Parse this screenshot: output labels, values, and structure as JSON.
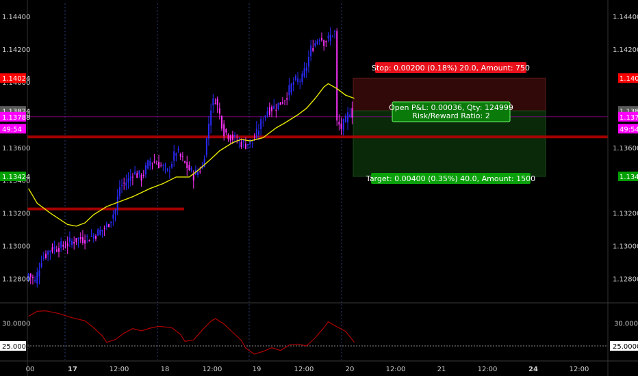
{
  "chart_data": [
    {
      "type": "candlestick",
      "ylim": [
        1.1266,
        1.1448
      ],
      "y_ticks_left": [
        "1.14400",
        "1.14200",
        "1.14000",
        "1.13800",
        "1.13600",
        "1.13400",
        "1.13200",
        "1.13000",
        "1.12800"
      ],
      "y_ticks_left_values": [
        1.144,
        1.142,
        1.14,
        1.138,
        1.136,
        1.134,
        1.132,
        1.13,
        1.128
      ],
      "y_ticks_right": [
        "1.14400",
        "1.14200",
        "1.13600",
        "1.13200",
        "1.13000",
        "1.12800"
      ],
      "y_ticks_right_values": [
        1.144,
        1.142,
        1.136,
        1.132,
        1.13,
        1.128
      ],
      "x_ticks": [
        "00",
        "17",
        "12:00",
        "18",
        "12:00",
        "19",
        "12:00",
        "20",
        "12:00",
        "21",
        "12:00",
        "24",
        "12:00"
      ],
      "x_tick_bold": [
        false,
        true,
        false,
        false,
        false,
        false,
        false,
        false,
        false,
        false,
        false,
        true,
        false
      ],
      "grid": false,
      "price_badges": [
        {
          "label": "1.14024",
          "value": 1.14024,
          "color": "#ff0000"
        },
        {
          "label": "1.13824",
          "value": 1.13824,
          "color": "#5a5a5a"
        },
        {
          "label": "1.13788",
          "value": 1.13788,
          "color": "#ff00ff"
        },
        {
          "label": "49:54",
          "value": 1.13715,
          "color": "#ff00ff"
        },
        {
          "label": "1.13424",
          "value": 1.13424,
          "color": "#00a000"
        }
      ],
      "moving_average": {
        "color": "#e8e800",
        "points": [
          [
            0,
            1.1335
          ],
          [
            4,
            1.1326
          ],
          [
            10,
            1.132
          ],
          [
            18,
            1.1313
          ],
          [
            22,
            1.1312
          ],
          [
            26,
            1.1314
          ],
          [
            30,
            1.1319
          ],
          [
            36,
            1.1324
          ],
          [
            42,
            1.1327
          ],
          [
            48,
            1.133
          ],
          [
            56,
            1.1335
          ],
          [
            62,
            1.1338
          ],
          [
            68,
            1.1342
          ],
          [
            74,
            1.1342
          ],
          [
            78,
            1.1346
          ],
          [
            84,
            1.1353
          ],
          [
            88,
            1.1358
          ],
          [
            94,
            1.1363
          ],
          [
            98,
            1.1365
          ],
          [
            102,
            1.1364
          ],
          [
            108,
            1.1366
          ],
          [
            114,
            1.1372
          ],
          [
            118,
            1.1375
          ],
          [
            124,
            1.138
          ],
          [
            128,
            1.1384
          ],
          [
            132,
            1.139
          ],
          [
            136,
            1.1397
          ],
          [
            138,
            1.1399
          ],
          [
            142,
            1.1396
          ],
          [
            146,
            1.1392
          ],
          [
            150,
            1.139
          ]
        ]
      },
      "horizontal_lines": [
        {
          "value": 1.13665,
          "from": 0,
          "to": 1.0,
          "color": "#c00000"
        },
        {
          "value": 1.13225,
          "from": 0,
          "to": 0.27,
          "color": "#c00000"
        }
      ],
      "position": {
        "entry": 1.13824,
        "stop": 1.14024,
        "target": 1.13424,
        "stop_label": "Stop: 0.00200 (0.18%) 20.0, Amount: 750",
        "pnl_label_line1": "Open P&L: 0.00036, Qty: 124999",
        "pnl_label_line2": "Risk/Reward Ratio: 2",
        "target_label": "Target: 0.00400 (0.35%) 40.0, Amount: 1500"
      }
    },
    {
      "type": "line",
      "name": "indicator",
      "ylim": [
        22,
        34
      ],
      "y_ticks": [
        "30.0000",
        "25.0000"
      ],
      "y_tick_values": [
        30,
        25
      ],
      "reference_line": 25,
      "color": "#b00000",
      "points": [
        [
          0,
          31.5
        ],
        [
          4,
          32.6
        ],
        [
          8,
          32.7
        ],
        [
          14,
          32.1
        ],
        [
          20,
          31.2
        ],
        [
          26,
          30.5
        ],
        [
          30,
          29.0
        ],
        [
          34,
          27.2
        ],
        [
          36,
          25.8
        ],
        [
          40,
          26.4
        ],
        [
          44,
          27.8
        ],
        [
          48,
          28.8
        ],
        [
          52,
          28.3
        ],
        [
          56,
          28.9
        ],
        [
          60,
          29.3
        ],
        [
          66,
          29.0
        ],
        [
          70,
          27.5
        ],
        [
          72,
          26.0
        ],
        [
          76,
          26.3
        ],
        [
          80,
          28.5
        ],
        [
          84,
          30.4
        ],
        [
          86,
          31.0
        ],
        [
          90,
          29.8
        ],
        [
          94,
          28.0
        ],
        [
          98,
          26.2
        ],
        [
          100,
          24.5
        ],
        [
          104,
          23.2
        ],
        [
          108,
          23.8
        ],
        [
          112,
          24.6
        ],
        [
          116,
          24.0
        ],
        [
          120,
          25.2
        ],
        [
          124,
          25.4
        ],
        [
          128,
          25.0
        ],
        [
          132,
          26.8
        ],
        [
          136,
          29.0
        ],
        [
          138,
          30.3
        ],
        [
          142,
          29.2
        ],
        [
          146,
          28.2
        ],
        [
          150,
          25.8
        ]
      ]
    }
  ]
}
